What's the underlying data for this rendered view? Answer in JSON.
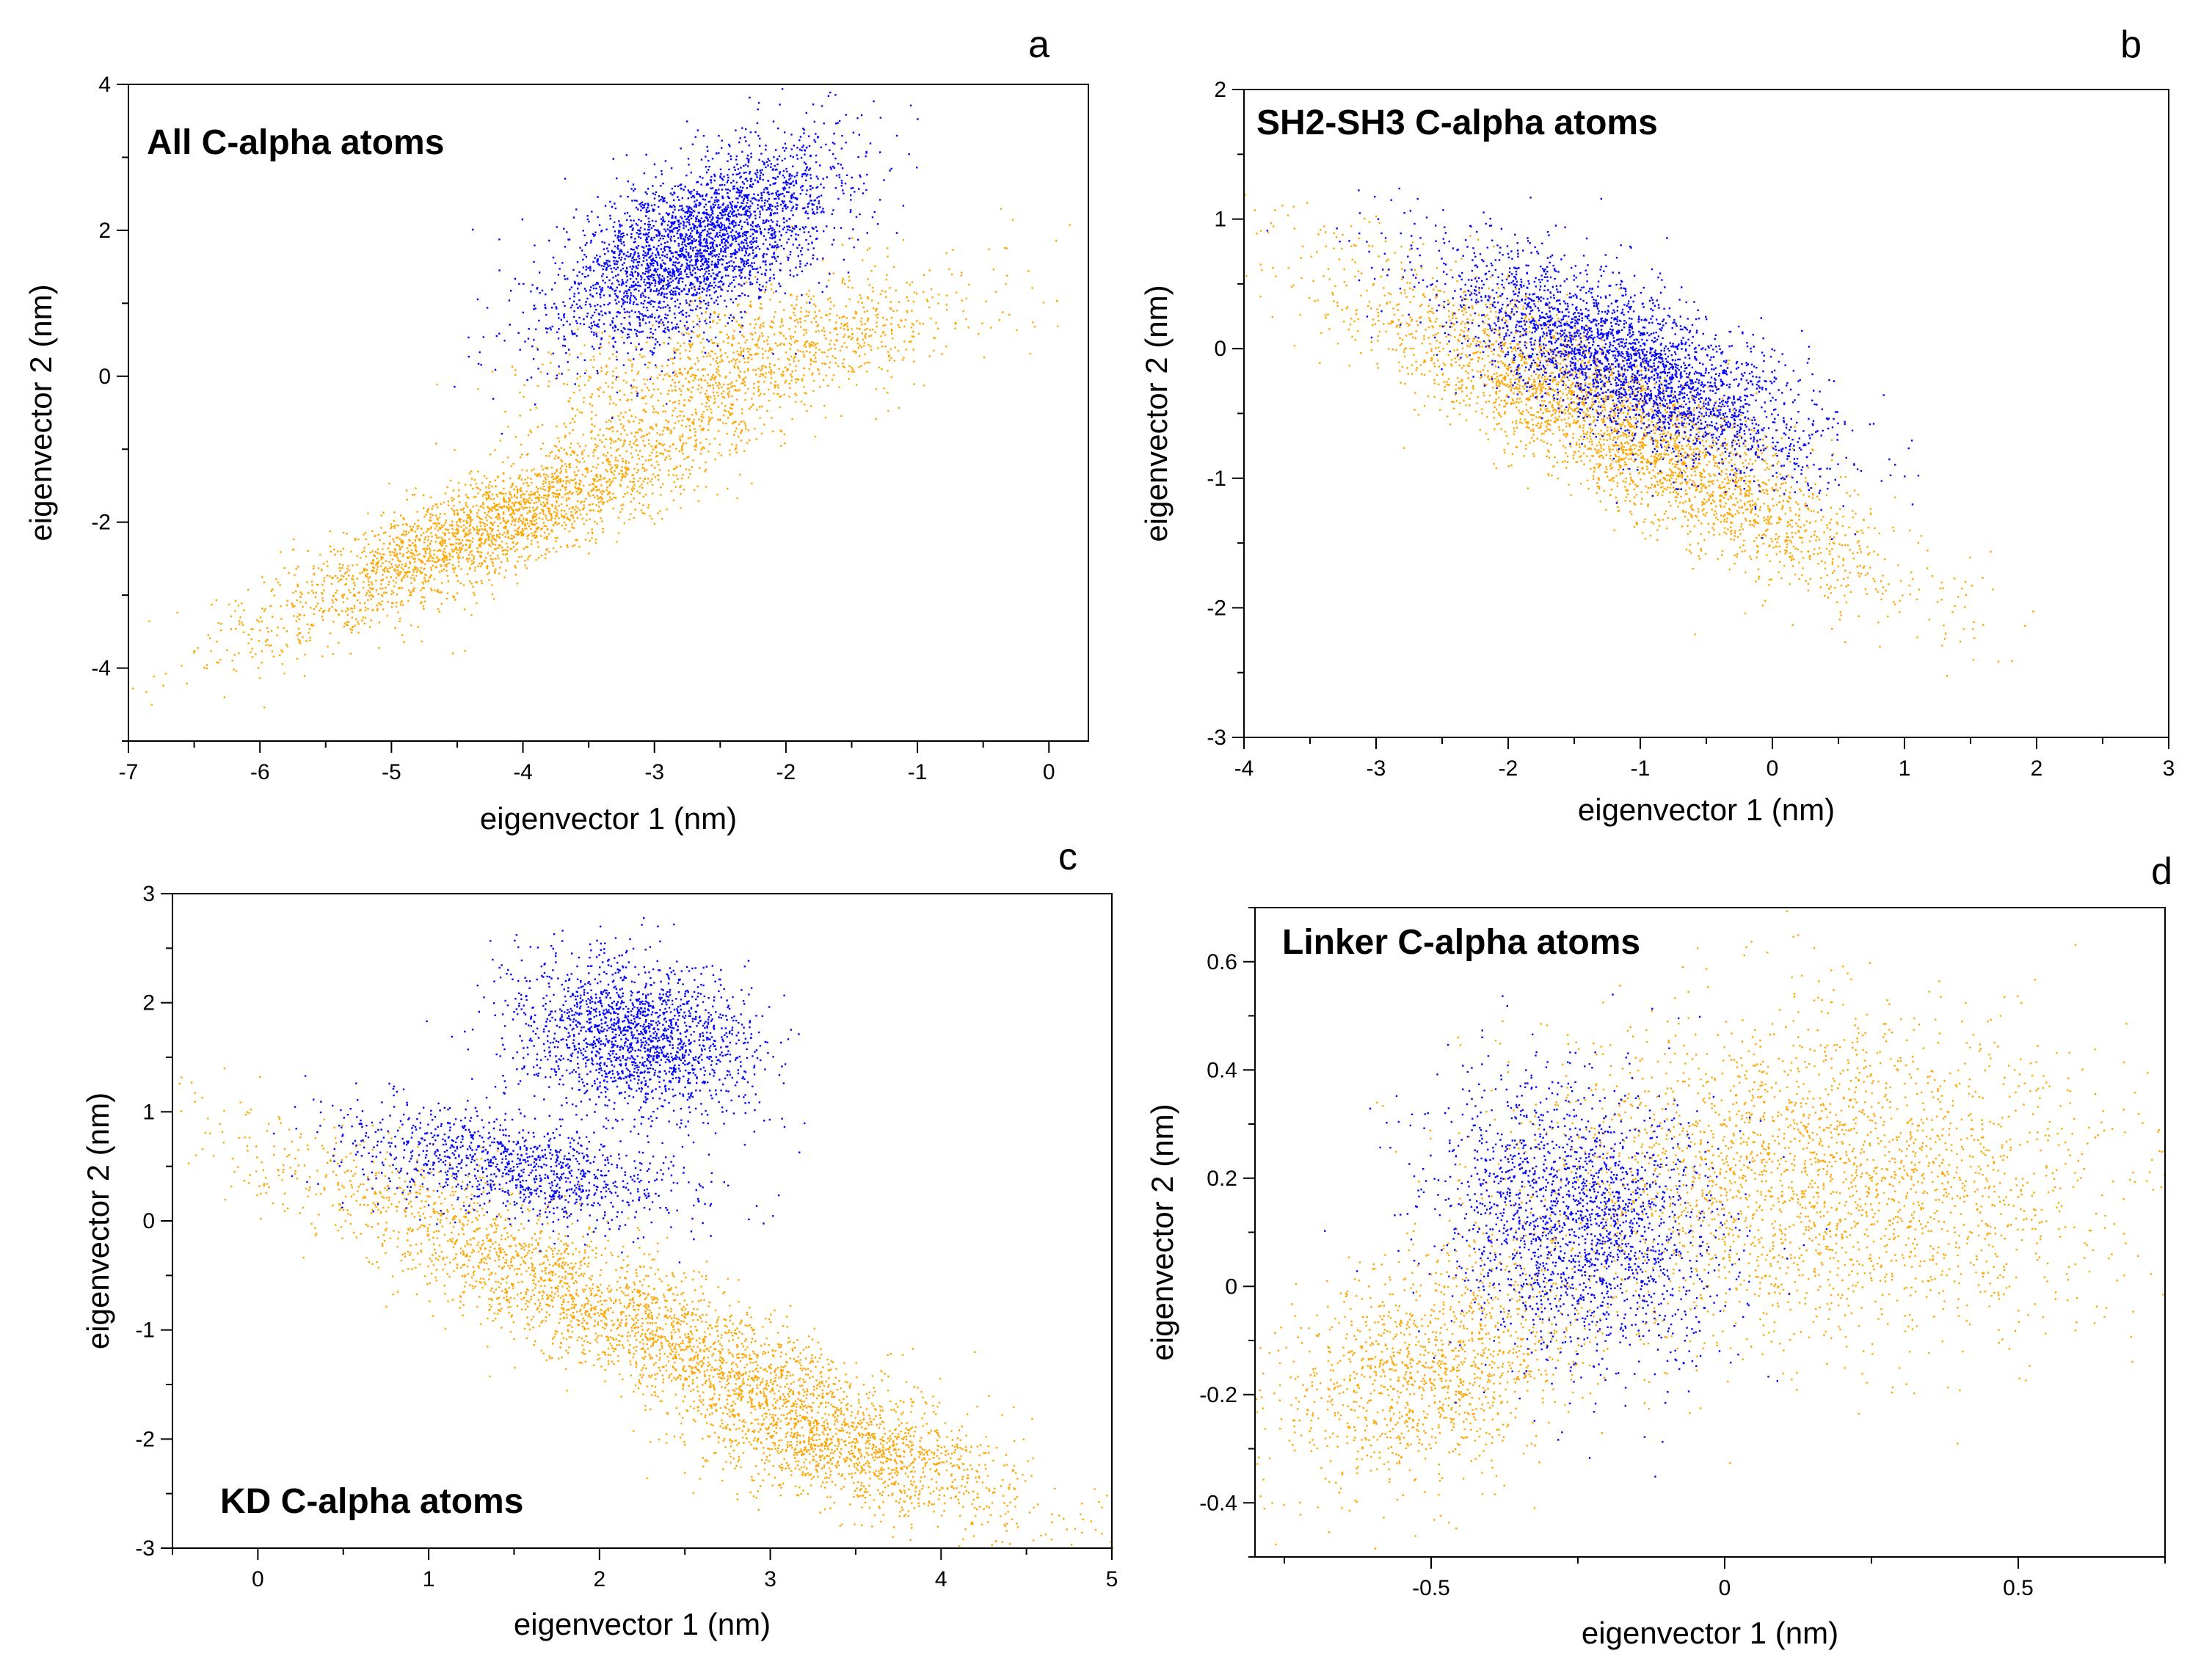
{
  "chart_data": [
    {
      "id": "a",
      "type": "scatter",
      "panel_label": "a",
      "title": "All C-alpha atoms",
      "title_position": "top-left",
      "xlabel": "eigenvector 1 (nm)",
      "ylabel": "eigenvector 2 (nm)",
      "xlim": [
        -7,
        0.3
      ],
      "ylim": [
        -5,
        4
      ],
      "xticks": [
        -7,
        -6,
        -5,
        -4,
        -3,
        -2,
        -1,
        0
      ],
      "xtick_labels": [
        "-7",
        "-6",
        "-5",
        "-4",
        "-3",
        "-2",
        "-1",
        "0"
      ],
      "yticks": [
        -4,
        -2,
        0,
        2,
        4
      ],
      "ytick_labels": [
        "-4",
        "-2",
        "0",
        "2",
        "4"
      ],
      "series": [
        {
          "name": "orange",
          "color": "#FFA500",
          "clusters": [
            {
              "cx": -4.2,
              "cy": -2.0,
              "sx": 0.9,
              "sy": 0.8,
              "rho": 0.88,
              "n": 2600
            },
            {
              "cx": -2.2,
              "cy": 0.3,
              "sx": 0.8,
              "sy": 0.55,
              "rho": 0.6,
              "n": 1200
            }
          ]
        },
        {
          "name": "blue",
          "color": "#0000FF",
          "clusters": [
            {
              "cx": -2.7,
              "cy": 1.8,
              "sx": 0.55,
              "sy": 0.7,
              "rho": 0.6,
              "n": 3000
            }
          ]
        }
      ]
    },
    {
      "id": "b",
      "type": "scatter",
      "panel_label": "b",
      "title": "SH2-SH3 C-alpha atoms",
      "title_position": "top-left",
      "xlabel": "eigenvector 1 (nm)",
      "ylabel": "eigenvector 2 (nm)",
      "xlim": [
        -4,
        3
      ],
      "ylim": [
        -3,
        2
      ],
      "xticks": [
        -4,
        -3,
        -2,
        -1,
        0,
        1,
        2,
        3
      ],
      "xtick_labels": [
        "-4",
        "-3",
        "-2",
        "-1",
        "0",
        "1",
        "2",
        "3"
      ],
      "yticks": [
        -3,
        -2,
        -1,
        0,
        1,
        2
      ],
      "ytick_labels": [
        "-3",
        "-2",
        "-1",
        "0",
        "1",
        "2"
      ],
      "series": [
        {
          "name": "orange",
          "color": "#FFA500",
          "clusters": [
            {
              "cx": -1.2,
              "cy": -0.6,
              "sx": 1.0,
              "sy": 0.6,
              "rho": -0.88,
              "n": 3200
            }
          ]
        },
        {
          "name": "blue",
          "color": "#0000FF",
          "clusters": [
            {
              "cx": -1.1,
              "cy": -0.1,
              "sx": 0.7,
              "sy": 0.42,
              "rho": -0.72,
              "n": 3000
            }
          ]
        }
      ]
    },
    {
      "id": "c",
      "type": "scatter",
      "panel_label": "c",
      "title": "KD C-alpha atoms",
      "title_position": "bottom-left",
      "xlabel": "eigenvector 1 (nm)",
      "ylabel": "eigenvector 2 (nm)",
      "xlim": [
        -0.5,
        5
      ],
      "ylim": [
        -3,
        3
      ],
      "xticks": [
        0,
        1,
        2,
        3,
        4,
        5
      ],
      "xtick_labels": [
        "0",
        "1",
        "2",
        "3",
        "4",
        "5"
      ],
      "yticks": [
        -3,
        -2,
        -1,
        0,
        1,
        2,
        3
      ],
      "ytick_labels": [
        "-3",
        "-2",
        "-1",
        "0",
        "1",
        "2",
        "3"
      ],
      "series": [
        {
          "name": "orange",
          "color": "#FFA500",
          "clusters": [
            {
              "cx": 2.3,
              "cy": -1.0,
              "sx": 1.1,
              "sy": 0.85,
              "rho": -0.93,
              "n": 3200
            },
            {
              "cx": 3.4,
              "cy": -2.1,
              "sx": 0.45,
              "sy": 0.3,
              "rho": -0.4,
              "n": 800
            }
          ]
        },
        {
          "name": "blue",
          "color": "#0000FF",
          "clusters": [
            {
              "cx": 2.2,
              "cy": 1.7,
              "sx": 0.35,
              "sy": 0.35,
              "rho": -0.2,
              "n": 1800
            },
            {
              "cx": 1.5,
              "cy": 0.5,
              "sx": 0.5,
              "sy": 0.28,
              "rho": -0.5,
              "n": 1100
            }
          ]
        }
      ]
    },
    {
      "id": "d",
      "type": "scatter",
      "panel_label": "d",
      "title": "Linker C-alpha atoms",
      "title_position": "top-left",
      "xlabel": "eigenvector 1 (nm)",
      "ylabel": "eigenvector 2 (nm)",
      "xlim": [
        -0.8,
        0.75
      ],
      "ylim": [
        -0.5,
        0.7
      ],
      "xticks": [
        -0.5,
        0,
        0.5
      ],
      "xtick_labels": [
        "-0.5",
        "0",
        "0.5"
      ],
      "yticks": [
        -0.4,
        -0.2,
        0,
        0.2,
        0.4,
        0.6
      ],
      "ytick_labels": [
        "-0.4",
        "-0.2",
        "0",
        "0.2",
        "0.4",
        "0.6"
      ],
      "series": [
        {
          "name": "orange",
          "color": "#FFA500",
          "clusters": [
            {
              "cx": 0.15,
              "cy": 0.2,
              "sx": 0.25,
              "sy": 0.15,
              "rho": 0.0,
              "n": 2600
            },
            {
              "cx": -0.5,
              "cy": -0.15,
              "sx": 0.13,
              "sy": 0.11,
              "rho": 0.3,
              "n": 1300
            }
          ]
        },
        {
          "name": "blue",
          "color": "#0000FF",
          "clusters": [
            {
              "cx": -0.25,
              "cy": 0.12,
              "sx": 0.12,
              "sy": 0.13,
              "rho": -0.2,
              "n": 2000
            }
          ]
        }
      ]
    }
  ]
}
